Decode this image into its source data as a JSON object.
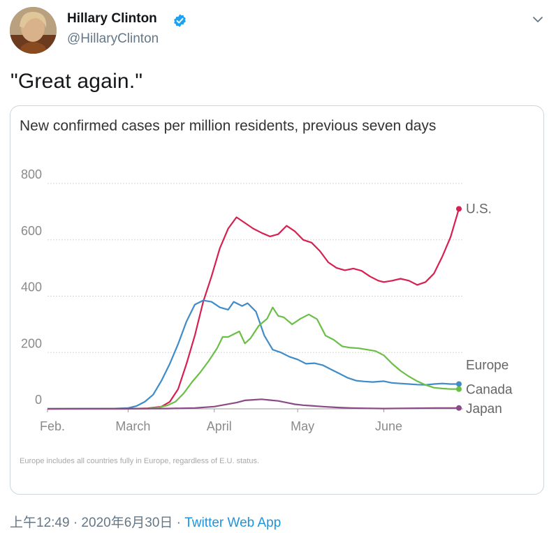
{
  "author": {
    "name": "Hillary Clinton",
    "handle": "@HillaryClinton"
  },
  "tweet": {
    "text": "\"Great again.\"",
    "time": "上午12:49 · 2020年6月30日 · ",
    "app": "Twitter Web App"
  },
  "icons": {
    "verified": "verified-badge-icon",
    "caret": "chevron-down-icon"
  },
  "colors": {
    "us": "#d6204f",
    "europe": "#3f8cc8",
    "canada": "#6abf45",
    "japan": "#8a4a86",
    "link": "#1b95e0"
  },
  "chart_data": {
    "type": "line",
    "title": "New confirmed cases per million residents, previous seven days",
    "footnote": "Europe includes all countries fully in Europe, regardless of E.U. status.",
    "x_ticks": [
      {
        "label": "Feb.",
        "date": "2020-02-01"
      },
      {
        "label": "March",
        "date": "2020-03-01"
      },
      {
        "label": "April",
        "date": "2020-04-01"
      },
      {
        "label": "May",
        "date": "2020-05-01"
      },
      {
        "label": "June",
        "date": "2020-06-01"
      }
    ],
    "x_range": [
      "2020-02-01",
      "2020-06-28"
    ],
    "y_ticks": [
      0,
      200,
      400,
      600,
      800
    ],
    "ylim": [
      0,
      800
    ],
    "grid": true,
    "series": [
      {
        "name": "U.S.",
        "color": "#d6204f",
        "points": [
          [
            "2020-02-01",
            0
          ],
          [
            "2020-03-01",
            0
          ],
          [
            "2020-03-08",
            2
          ],
          [
            "2020-03-13",
            8
          ],
          [
            "2020-03-16",
            25
          ],
          [
            "2020-03-19",
            70
          ],
          [
            "2020-03-22",
            160
          ],
          [
            "2020-03-25",
            260
          ],
          [
            "2020-03-28",
            380
          ],
          [
            "2020-03-31",
            470
          ],
          [
            "2020-04-03",
            570
          ],
          [
            "2020-04-06",
            640
          ],
          [
            "2020-04-09",
            680
          ],
          [
            "2020-04-12",
            660
          ],
          [
            "2020-04-15",
            640
          ],
          [
            "2020-04-18",
            625
          ],
          [
            "2020-04-21",
            612
          ],
          [
            "2020-04-24",
            620
          ],
          [
            "2020-04-27",
            650
          ],
          [
            "2020-04-30",
            630
          ],
          [
            "2020-05-03",
            600
          ],
          [
            "2020-05-06",
            590
          ],
          [
            "2020-05-09",
            560
          ],
          [
            "2020-05-12",
            520
          ],
          [
            "2020-05-15",
            500
          ],
          [
            "2020-05-18",
            492
          ],
          [
            "2020-05-21",
            498
          ],
          [
            "2020-05-24",
            490
          ],
          [
            "2020-05-27",
            470
          ],
          [
            "2020-05-30",
            455
          ],
          [
            "2020-06-01",
            450
          ],
          [
            "2020-06-04",
            455
          ],
          [
            "2020-06-07",
            462
          ],
          [
            "2020-06-10",
            455
          ],
          [
            "2020-06-13",
            440
          ],
          [
            "2020-06-16",
            450
          ],
          [
            "2020-06-19",
            480
          ],
          [
            "2020-06-22",
            540
          ],
          [
            "2020-06-25",
            610
          ],
          [
            "2020-06-28",
            710
          ]
        ]
      },
      {
        "name": "Europe",
        "color": "#3f8cc8",
        "points": [
          [
            "2020-02-01",
            0
          ],
          [
            "2020-02-25",
            1
          ],
          [
            "2020-03-01",
            3
          ],
          [
            "2020-03-04",
            10
          ],
          [
            "2020-03-07",
            25
          ],
          [
            "2020-03-10",
            50
          ],
          [
            "2020-03-13",
            100
          ],
          [
            "2020-03-16",
            160
          ],
          [
            "2020-03-19",
            230
          ],
          [
            "2020-03-22",
            310
          ],
          [
            "2020-03-25",
            370
          ],
          [
            "2020-03-28",
            385
          ],
          [
            "2020-03-31",
            380
          ],
          [
            "2020-04-03",
            360
          ],
          [
            "2020-04-06",
            352
          ],
          [
            "2020-04-08",
            380
          ],
          [
            "2020-04-11",
            365
          ],
          [
            "2020-04-13",
            375
          ],
          [
            "2020-04-16",
            345
          ],
          [
            "2020-04-19",
            260
          ],
          [
            "2020-04-22",
            210
          ],
          [
            "2020-04-25",
            200
          ],
          [
            "2020-04-28",
            185
          ],
          [
            "2020-05-01",
            175
          ],
          [
            "2020-05-04",
            160
          ],
          [
            "2020-05-07",
            162
          ],
          [
            "2020-05-10",
            155
          ],
          [
            "2020-05-13",
            140
          ],
          [
            "2020-05-16",
            125
          ],
          [
            "2020-05-19",
            110
          ],
          [
            "2020-05-22",
            100
          ],
          [
            "2020-05-25",
            97
          ],
          [
            "2020-05-28",
            95
          ],
          [
            "2020-06-01",
            98
          ],
          [
            "2020-06-04",
            92
          ],
          [
            "2020-06-07",
            90
          ],
          [
            "2020-06-10",
            88
          ],
          [
            "2020-06-13",
            86
          ],
          [
            "2020-06-16",
            85
          ],
          [
            "2020-06-19",
            88
          ],
          [
            "2020-06-22",
            90
          ],
          [
            "2020-06-25",
            88
          ],
          [
            "2020-06-28",
            88
          ]
        ]
      },
      {
        "name": "Canada",
        "color": "#6abf45",
        "points": [
          [
            "2020-02-01",
            0
          ],
          [
            "2020-03-08",
            1
          ],
          [
            "2020-03-12",
            5
          ],
          [
            "2020-03-15",
            12
          ],
          [
            "2020-03-18",
            25
          ],
          [
            "2020-03-21",
            55
          ],
          [
            "2020-03-24",
            95
          ],
          [
            "2020-03-27",
            130
          ],
          [
            "2020-03-30",
            170
          ],
          [
            "2020-04-02",
            215
          ],
          [
            "2020-04-04",
            255
          ],
          [
            "2020-04-06",
            255
          ],
          [
            "2020-04-08",
            265
          ],
          [
            "2020-04-10",
            275
          ],
          [
            "2020-04-12",
            232
          ],
          [
            "2020-04-14",
            250
          ],
          [
            "2020-04-17",
            295
          ],
          [
            "2020-04-20",
            320
          ],
          [
            "2020-04-22",
            360
          ],
          [
            "2020-04-24",
            330
          ],
          [
            "2020-04-26",
            325
          ],
          [
            "2020-04-29",
            300
          ],
          [
            "2020-05-02",
            320
          ],
          [
            "2020-05-05",
            335
          ],
          [
            "2020-05-08",
            318
          ],
          [
            "2020-05-11",
            260
          ],
          [
            "2020-05-14",
            245
          ],
          [
            "2020-05-17",
            222
          ],
          [
            "2020-05-20",
            217
          ],
          [
            "2020-05-23",
            215
          ],
          [
            "2020-05-26",
            210
          ],
          [
            "2020-05-29",
            205
          ],
          [
            "2020-06-01",
            190
          ],
          [
            "2020-06-04",
            160
          ],
          [
            "2020-06-07",
            135
          ],
          [
            "2020-06-10",
            115
          ],
          [
            "2020-06-13",
            98
          ],
          [
            "2020-06-16",
            85
          ],
          [
            "2020-06-19",
            75
          ],
          [
            "2020-06-22",
            72
          ],
          [
            "2020-06-25",
            70
          ],
          [
            "2020-06-28",
            70
          ]
        ]
      },
      {
        "name": "Japan",
        "color": "#8a4a86",
        "points": [
          [
            "2020-02-01",
            0
          ],
          [
            "2020-03-15",
            1
          ],
          [
            "2020-03-25",
            3
          ],
          [
            "2020-04-01",
            8
          ],
          [
            "2020-04-05",
            15
          ],
          [
            "2020-04-09",
            22
          ],
          [
            "2020-04-12",
            30
          ],
          [
            "2020-04-15",
            32
          ],
          [
            "2020-04-18",
            34
          ],
          [
            "2020-04-21",
            31
          ],
          [
            "2020-04-24",
            28
          ],
          [
            "2020-04-27",
            22
          ],
          [
            "2020-04-30",
            16
          ],
          [
            "2020-05-03",
            13
          ],
          [
            "2020-05-06",
            11
          ],
          [
            "2020-05-10",
            8
          ],
          [
            "2020-05-15",
            5
          ],
          [
            "2020-05-20",
            3
          ],
          [
            "2020-05-25",
            2
          ],
          [
            "2020-06-01",
            1
          ],
          [
            "2020-06-10",
            2
          ],
          [
            "2020-06-20",
            3
          ],
          [
            "2020-06-28",
            3
          ]
        ]
      }
    ]
  }
}
